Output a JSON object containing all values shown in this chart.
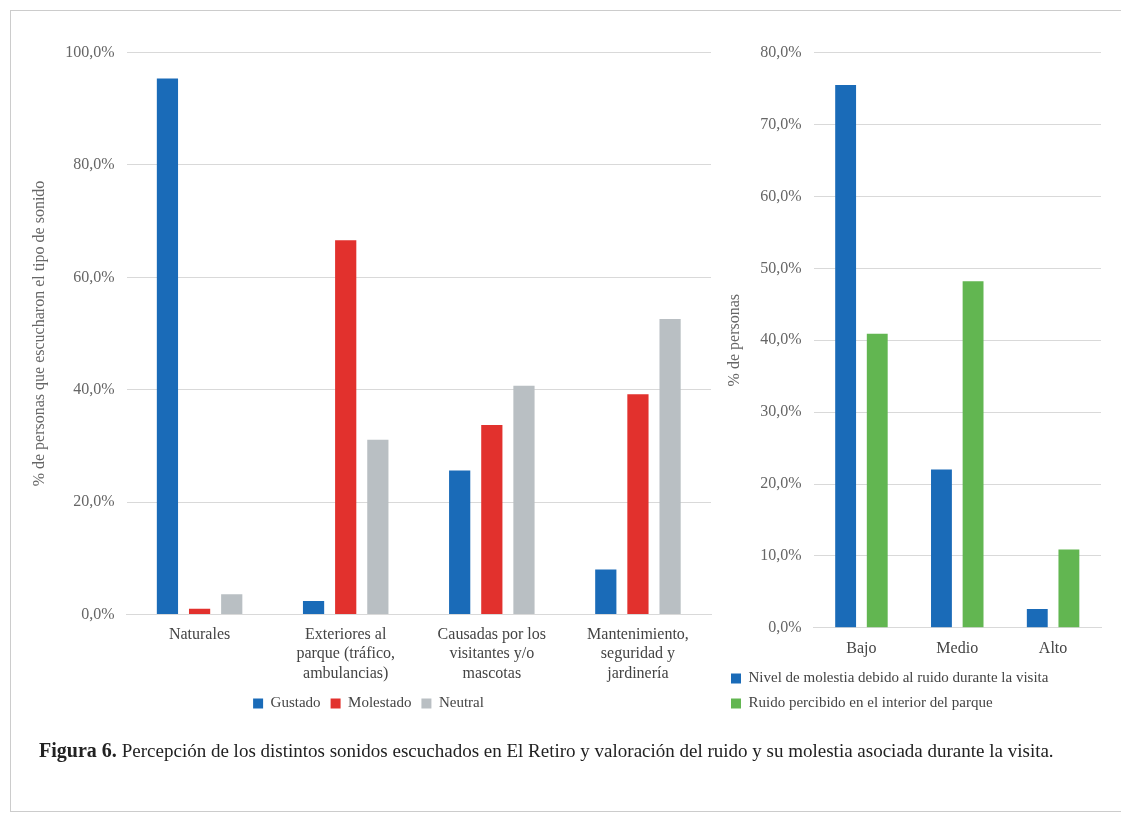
{
  "chart_data": [
    {
      "type": "bar",
      "ylabel": "% de personas que escucharon el tipo de sonido",
      "categories": [
        "Naturales",
        "Exteriores al parque (tráfico, ambulancias)",
        "Causadas por los visitantes y/o mascotas",
        "Mantenimiento, seguridad y jardinería"
      ],
      "series": [
        {
          "name": "Gustado",
          "color": "#1a6bb8",
          "values": [
            95.4,
            2.4,
            25.6,
            8.0
          ]
        },
        {
          "name": "Molestado",
          "color": "#e2312d",
          "values": [
            1.0,
            66.6,
            33.7,
            39.2
          ]
        },
        {
          "name": "Neutral",
          "color": "#b9bfc3",
          "values": [
            3.6,
            31.1,
            40.7,
            52.6
          ]
        }
      ],
      "ylim": [
        0,
        100
      ],
      "yticks": [
        {
          "value": 0,
          "label": "0,0%"
        },
        {
          "value": 20,
          "label": "20,0%"
        },
        {
          "value": 40,
          "label": "40,0%"
        },
        {
          "value": 60,
          "label": "60,0%"
        },
        {
          "value": 80,
          "label": "80,0%"
        },
        {
          "value": 100,
          "label": "100,0%"
        }
      ],
      "grid": "y",
      "legend": "bottom",
      "annotations": [
        "Figura 6.",
        "Percepción de los distintos sonidos escuchados en El Retiro y valoración del ruido y su molestia asociada durante la visita."
      ]
    },
    {
      "type": "bar",
      "ylabel": "% de personas",
      "categories": [
        "Bajo",
        "Medio",
        "Alto"
      ],
      "series": [
        {
          "name": "Nivel de molestia debido al ruido durante la visita",
          "color": "#1a6bb8",
          "values": [
            75.5,
            22.0,
            2.6
          ]
        },
        {
          "name": "Ruido percibido en el interior del parque",
          "color": "#62b651",
          "values": [
            40.9,
            48.2,
            10.9
          ]
        }
      ],
      "ylim": [
        0,
        80
      ],
      "yticks": [
        {
          "value": 0,
          "label": "0,0%"
        },
        {
          "value": 10,
          "label": "10,0%"
        },
        {
          "value": 20,
          "label": "20,0%"
        },
        {
          "value": 30,
          "label": "30,0%"
        },
        {
          "value": 40,
          "label": "40,0%"
        },
        {
          "value": 50,
          "label": "50,0%"
        },
        {
          "value": 60,
          "label": "60,0%"
        },
        {
          "value": 70,
          "label": "70,0%"
        },
        {
          "value": 80,
          "label": "80,0%"
        }
      ],
      "grid": "y",
      "legend": "bottom"
    }
  ]
}
